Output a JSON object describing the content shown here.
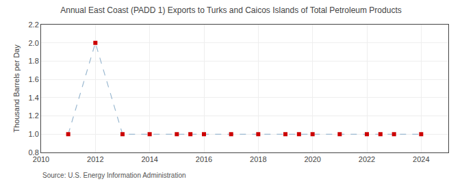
{
  "chart_data": {
    "type": "line",
    "title": "Annual East Coast (PADD 1) Exports to Turks and Caicos Islands of Total Petroleum Products",
    "ylabel": "Thousand Barrels per Day",
    "annotations": [
      "Source: U.S. Energy Information Administration"
    ],
    "x": [
      2011,
      2012,
      2013,
      2014,
      2015,
      2015.5,
      2016,
      2017,
      2018,
      2019,
      2019.5,
      2020,
      2021,
      2022,
      2022.5,
      2023,
      2024
    ],
    "values": [
      1.0,
      2.0,
      1.0,
      1.0,
      1.0,
      1.0,
      1.0,
      1.0,
      1.0,
      1.0,
      1.0,
      1.0,
      1.0,
      1.0,
      1.0,
      1.0,
      1.0
    ],
    "color": "#9ab8d0",
    "colors": [
      "#cc0000",
      "#cc0000",
      "#cc0000",
      "#cc0000",
      "#cc0000",
      "#cc0000",
      "#cc0000",
      "#cc0000",
      "#cc0000",
      "#cc0000",
      "#cc0000",
      "#cc0000",
      "#cc0000",
      "#cc0000",
      "#cc0000",
      "#cc0000",
      "#cc0000"
    ],
    "marker": "square",
    "line_style": "dashed",
    "xlim": [
      2010,
      2025
    ],
    "xticks": [
      2010,
      2012,
      2014,
      2016,
      2018,
      2020,
      2022,
      2024
    ],
    "ylim": [
      0.8,
      2.2
    ],
    "yticks": [
      0.8,
      {
        "value": 1.0,
        "label": "1.0"
      },
      1.2,
      1.4,
      1.6,
      1.8,
      {
        "value": 2.0,
        "label": "2.0"
      },
      2.2
    ],
    "grid": true
  }
}
